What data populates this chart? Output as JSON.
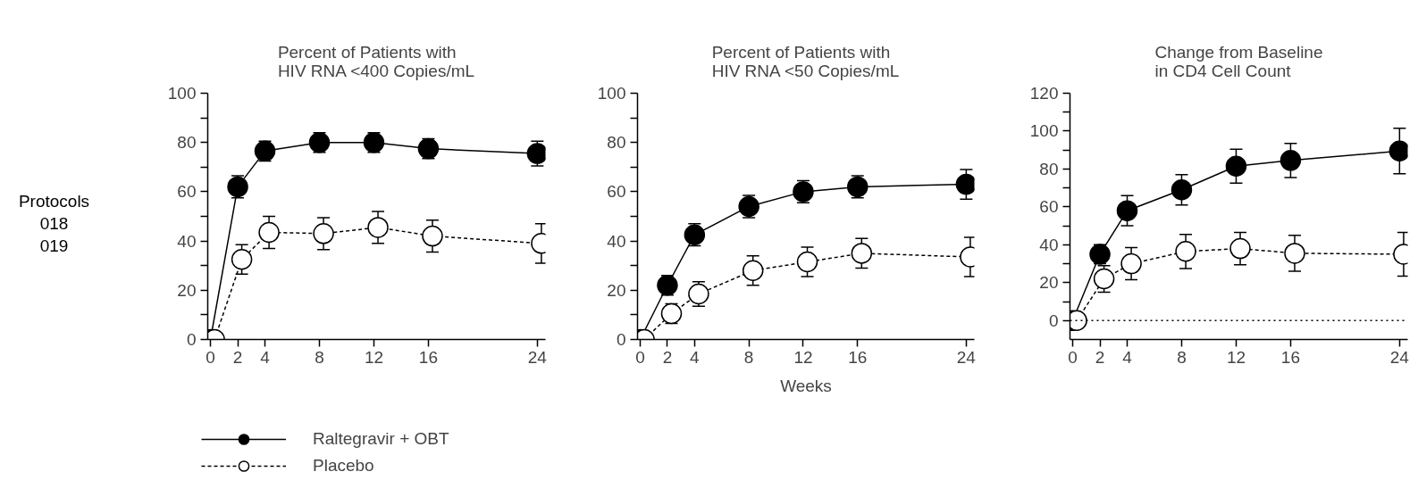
{
  "chart_data": [
    {
      "type": "line",
      "title": "Percent of Patients with\nHIV RNA <400 Copies/mL",
      "annotations": [
        "Protocols\n018\n019"
      ],
      "legend": "bottom left",
      "grid": false,
      "marker": "circle",
      "xlim": [
        -0.2,
        24.6
      ],
      "xticks": [
        0,
        2,
        4,
        8,
        12,
        16,
        24
      ],
      "ylim": [
        0,
        100
      ],
      "yticks": [
        0,
        {
          "value": 10,
          "label": null
        },
        20,
        {
          "value": 30,
          "label": null
        },
        40,
        {
          "value": 50,
          "label": null
        },
        60,
        {
          "value": 70,
          "label": null
        },
        80,
        {
          "value": 90,
          "label": null
        },
        100
      ],
      "series": [
        {
          "name": "Raltegravir + OBT",
          "color": "#000000",
          "line_style": "solid",
          "x": [
            0,
            2,
            4,
            8,
            12,
            16,
            24
          ],
          "values": [
            0,
            62,
            76.5,
            80,
            80,
            77.5,
            75.5
          ],
          "errors": [
            null,
            4.5,
            4,
            4,
            4,
            4,
            5
          ]
        },
        {
          "name": "Placebo",
          "color": "#ffffff",
          "line_style": "dashed",
          "x": [
            0.3,
            2.3,
            4.3,
            8.3,
            12.3,
            16.3,
            24.3
          ],
          "values": [
            0,
            32.5,
            43.5,
            43,
            45.5,
            42,
            39
          ],
          "errors": [
            null,
            6,
            6.5,
            6.5,
            6.5,
            6.5,
            8
          ]
        }
      ]
    },
    {
      "type": "line",
      "title": "Percent of Patients with\nHIV RNA <50 Copies/mL",
      "xlabel": "Weeks",
      "grid": false,
      "marker": "circle",
      "xlim": [
        -0.2,
        24.6
      ],
      "xticks": [
        0,
        2,
        4,
        8,
        12,
        16,
        24
      ],
      "ylim": [
        0,
        100
      ],
      "yticks": [
        0,
        {
          "value": 10,
          "label": null
        },
        20,
        {
          "value": 30,
          "label": null
        },
        40,
        {
          "value": 50,
          "label": null
        },
        60,
        {
          "value": 70,
          "label": null
        },
        80,
        {
          "value": 90,
          "label": null
        },
        100
      ],
      "series": [
        {
          "color": "#000000",
          "line_style": "solid",
          "x": [
            0,
            2,
            4,
            8,
            12,
            16,
            24
          ],
          "values": [
            0,
            22,
            42.5,
            54,
            60,
            62,
            63
          ],
          "errors": [
            null,
            4,
            4.5,
            4.5,
            4.5,
            4.5,
            6
          ]
        },
        {
          "color": "#ffffff",
          "line_style": "dashed",
          "x": [
            0.3,
            2.3,
            4.3,
            8.3,
            12.3,
            16.3,
            24.3
          ],
          "values": [
            0,
            10.5,
            18.5,
            28,
            31.5,
            35,
            33.5
          ],
          "errors": [
            null,
            4,
            5,
            6,
            6,
            6,
            8
          ]
        }
      ]
    },
    {
      "type": "line",
      "title": "Change from Baseline\nin CD4 Cell Count",
      "grid": false,
      "marker": "circle",
      "xlim": [
        -0.2,
        24.6
      ],
      "xticks": [
        0,
        2,
        4,
        8,
        12,
        16,
        24
      ],
      "ylim": [
        -10,
        120
      ],
      "yticks": [
        0,
        {
          "value": 10,
          "label": null
        },
        20,
        {
          "value": 30,
          "label": null
        },
        40,
        {
          "value": 50,
          "label": null
        },
        60,
        {
          "value": 70,
          "label": null
        },
        80,
        {
          "value": 90,
          "label": null
        },
        100,
        {
          "value": 110,
          "label": null
        },
        120
      ],
      "ref_lines": [
        {
          "axis": "y",
          "value": 0,
          "line_style": "dotted",
          "color": "#000000"
        }
      ],
      "series": [
        {
          "color": "#000000",
          "line_style": "solid",
          "x": [
            0,
            2,
            4,
            8,
            12,
            16,
            24
          ],
          "values": [
            0,
            35,
            58,
            69,
            81.5,
            84.5,
            89.5
          ],
          "errors": [
            null,
            5,
            8,
            8,
            9,
            9,
            12
          ]
        },
        {
          "color": "#ffffff",
          "line_style": "dashed",
          "x": [
            0.3,
            2.3,
            4.3,
            8.3,
            12.3,
            16.3,
            24.3
          ],
          "values": [
            0,
            22,
            30,
            36.5,
            38,
            35.5,
            35
          ],
          "errors": [
            null,
            7,
            8.5,
            9,
            8.5,
            9.5,
            11.5
          ]
        }
      ]
    }
  ]
}
